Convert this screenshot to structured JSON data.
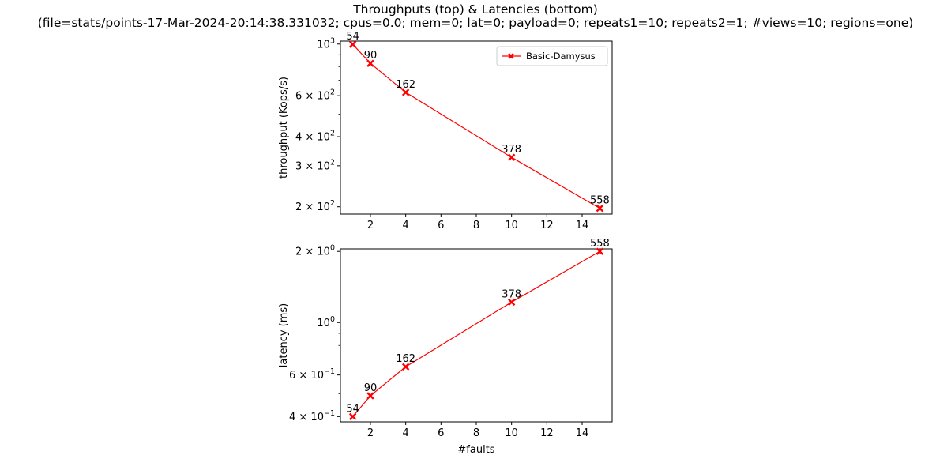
{
  "figure": {
    "title": "Throughputs (top) & Latencies (bottom)",
    "subtitle": "(file=stats/points-17-Mar-2024-20:14:38.331032; cpus=0.0; mem=0; lat=0; payload=0; repeats1=10; repeats2=1; #views=10; regions=one)"
  },
  "chart_data": [
    {
      "type": "line",
      "name": "throughput",
      "ylabel": "throughput (Kops/s)",
      "xlabel": "",
      "yscale": "log",
      "xlim": [
        0.3,
        15.7
      ],
      "ylim": [
        186,
        1030
      ],
      "x_ticks": [
        2,
        4,
        6,
        8,
        10,
        12,
        14
      ],
      "y_ticks": [
        {
          "value": 200,
          "base": "2",
          "exp": "2"
        },
        {
          "value": 300,
          "base": "3",
          "exp": "2"
        },
        {
          "value": 400,
          "base": "4",
          "exp": "2"
        },
        {
          "value": 600,
          "base": "6",
          "exp": "2"
        },
        {
          "value": 1000,
          "base": "10",
          "exp": "3",
          "plain": true
        }
      ],
      "y_minor_ticks": [
        500,
        700,
        800,
        900
      ],
      "legend": {
        "position": "top-right",
        "entries": [
          "Basic-Damysus"
        ]
      },
      "grid": false,
      "color": "#ff0000",
      "series": [
        {
          "name": "Basic-Damysus",
          "x": [
            1,
            2,
            4,
            10,
            15
          ],
          "y": [
            998,
            826,
            620,
            326,
            197
          ],
          "labels": [
            "54",
            "90",
            "162",
            "378",
            "558"
          ]
        }
      ]
    },
    {
      "type": "line",
      "name": "latency",
      "ylabel": "latency (ms)",
      "xlabel": "#faults",
      "yscale": "log",
      "xlim": [
        0.3,
        15.7
      ],
      "ylim": [
        0.38,
        2.05
      ],
      "x_ticks": [
        2,
        4,
        6,
        8,
        10,
        12,
        14
      ],
      "y_ticks": [
        {
          "value": 0.4,
          "base": "4",
          "exp": "−1"
        },
        {
          "value": 0.6,
          "base": "6",
          "exp": "−1"
        },
        {
          "value": 1.0,
          "base": "10",
          "exp": "0",
          "plain": true
        },
        {
          "value": 2.0,
          "base": "2",
          "exp": "0"
        }
      ],
      "y_minor_ticks": [
        0.5,
        0.7,
        0.8,
        0.9
      ],
      "grid": false,
      "color": "#ff0000",
      "series": [
        {
          "name": "Basic-Damysus",
          "x": [
            1,
            2,
            4,
            10,
            15
          ],
          "y": [
            0.4,
            0.49,
            0.65,
            1.22,
            2.0
          ],
          "labels": [
            "54",
            "90",
            "162",
            "378",
            "558"
          ]
        }
      ]
    }
  ]
}
